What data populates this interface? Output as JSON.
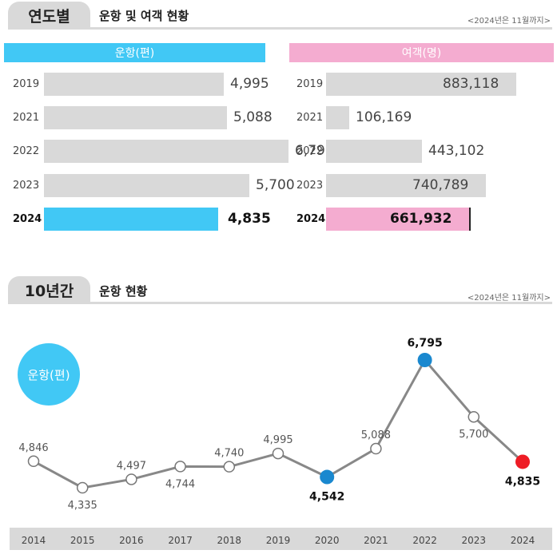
{
  "section1": {
    "tab_label": "연도별",
    "title": "운항 및 여객 현황",
    "note": "<2024년은 11월까지>"
  },
  "section2": {
    "tab_label": "10년간",
    "title": "운항 현황",
    "note": "<2024년은 11월까지>",
    "badge": "운항(편)"
  },
  "colors": {
    "flights_accent": "#41c8f5",
    "passengers_accent": "#f4acd0",
    "neutral_bar": "#d9d9d9",
    "line": "#888888",
    "marker_blue": "#1a88cf",
    "marker_red": "#ee1c25"
  },
  "chart_data": [
    {
      "type": "bar",
      "orientation": "horizontal",
      "title": "운항(편)",
      "categories": [
        "2019",
        "2021",
        "2022",
        "2023",
        "2024"
      ],
      "values": [
        4995,
        5088,
        6795,
        5700,
        4835
      ],
      "value_labels": [
        "4,995",
        "5,088",
        "6,795",
        "5,700",
        "4,835"
      ],
      "highlight": "2024",
      "xlim": [
        0,
        10000
      ]
    },
    {
      "type": "bar",
      "orientation": "horizontal",
      "title": "여객(명)",
      "categories": [
        "2019",
        "2021",
        "2022",
        "2023",
        "2024"
      ],
      "values": [
        883118,
        106169,
        443102,
        740789,
        661932
      ],
      "value_labels": [
        "883,118",
        "106,169",
        "443,102",
        "740,789",
        "661,932"
      ],
      "highlight": "2024",
      "xlim": [
        0,
        1000000
      ]
    },
    {
      "type": "line",
      "categories": [
        "2014",
        "2015",
        "2016",
        "2017",
        "2018",
        "2019",
        "2020",
        "2021",
        "2022",
        "2023",
        "2024"
      ],
      "values": [
        4846,
        4335,
        4497,
        4744,
        4740,
        4995,
        4542,
        5088,
        6795,
        5700,
        4835
      ],
      "value_labels": [
        "4,846",
        "4,335",
        "4,497",
        "4,744",
        "4,740",
        "4,995",
        "4,542",
        "5,088",
        "6,795",
        "5,700",
        "4,835"
      ],
      "label_position": [
        "above",
        "below",
        "above",
        "below",
        "above",
        "above",
        "below",
        "above",
        "above",
        "below",
        "below"
      ],
      "marker_style": [
        "open",
        "open",
        "open",
        "open",
        "open",
        "open",
        "blue",
        "open",
        "blue",
        "open",
        "red"
      ],
      "ylim": [
        3800,
        7000
      ]
    }
  ]
}
